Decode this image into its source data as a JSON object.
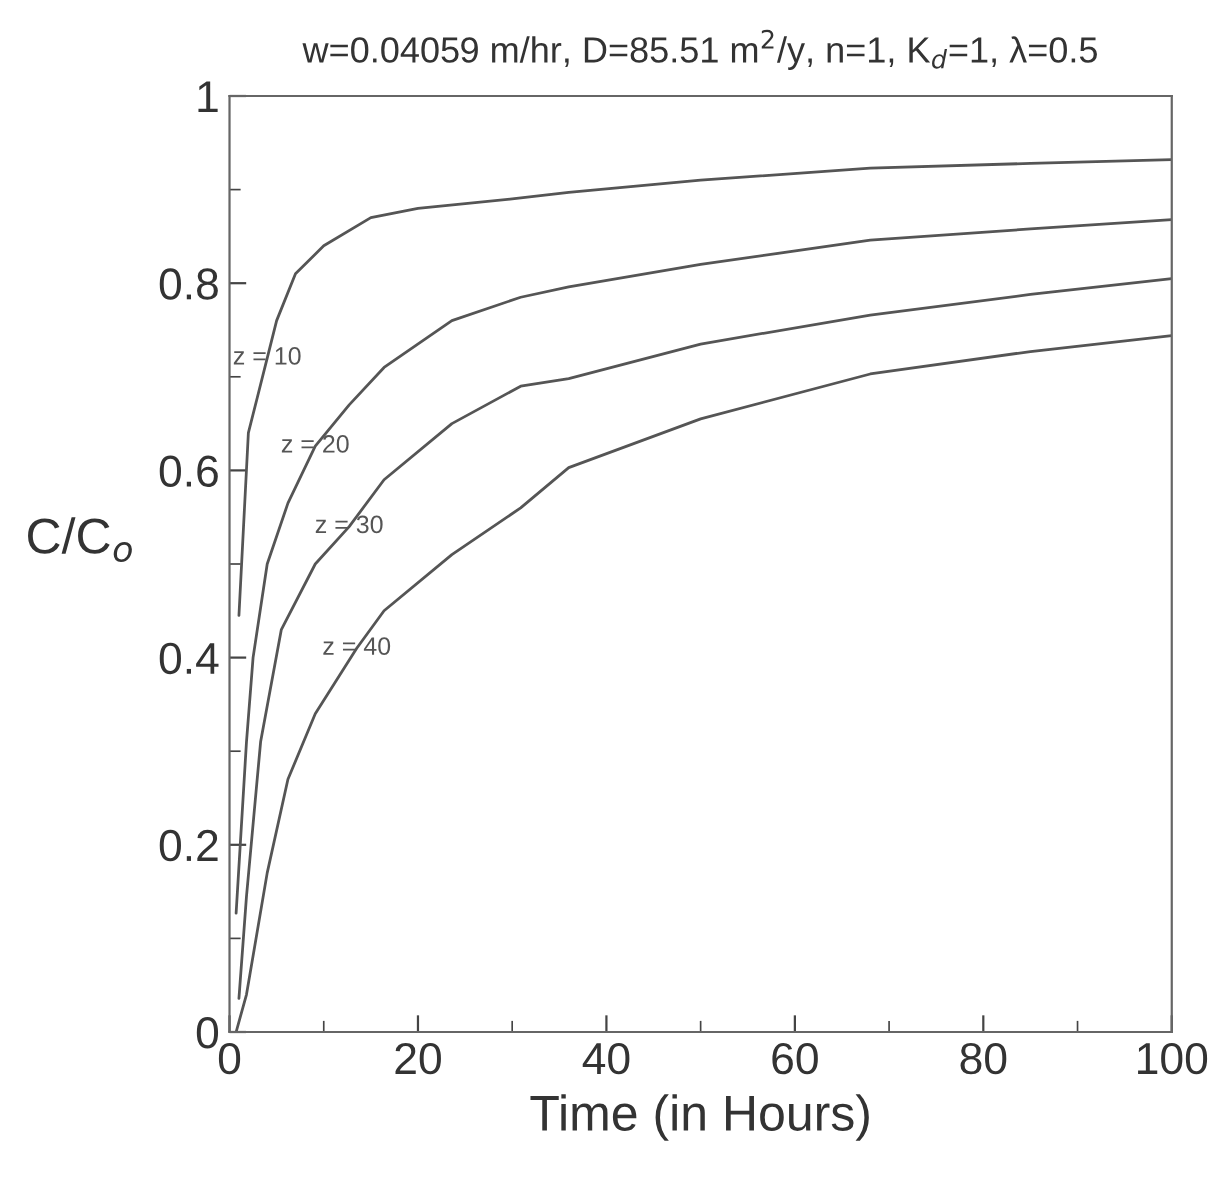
{
  "chart_data": {
    "type": "line",
    "title": "w=0.04059 m/hr, D=85.51 m$^{2}$/y, n=1, K$_{d}$=1, λ=0.5",
    "xlabel": "Time (in Hours)",
    "ylabel": "C/C$_{o}$",
    "xlim": [
      0,
      100
    ],
    "ylim": [
      0,
      1
    ],
    "xticks": [
      0,
      20,
      40,
      60,
      80,
      100
    ],
    "yticks": [
      0,
      0.2,
      0.4,
      0.6,
      0.8,
      1
    ],
    "grid": false,
    "marker": "none",
    "line_style": "solid",
    "series": [
      {
        "color": "#555555",
        "x": [
          1,
          2,
          4,
          5,
          7,
          10,
          15,
          20,
          30,
          36,
          50,
          68,
          85,
          100
        ],
        "values": [
          0.445,
          0.64,
          0.72,
          0.76,
          0.81,
          0.84,
          0.87,
          0.88,
          0.89,
          0.897,
          0.91,
          0.923,
          0.928,
          0.932
        ]
      },
      {
        "color": "#555555",
        "x": [
          0.7,
          1.8,
          2.5,
          4,
          6.2,
          9.1,
          12.7,
          16.4,
          23.6,
          30.9,
          36,
          50,
          68,
          85,
          100
        ],
        "values": [
          0.127,
          0.31,
          0.4,
          0.5,
          0.565,
          0.626,
          0.67,
          0.71,
          0.76,
          0.785,
          0.796,
          0.82,
          0.846,
          0.858,
          0.868
        ]
      },
      {
        "color": "#555555",
        "x": [
          1,
          1.8,
          3.3,
          5.5,
          9.1,
          12.7,
          16.4,
          23.6,
          30.9,
          36,
          50,
          68,
          85,
          100
        ],
        "values": [
          0.036,
          0.145,
          0.31,
          0.43,
          0.5,
          0.54,
          0.59,
          0.65,
          0.69,
          0.698,
          0.735,
          0.766,
          0.788,
          0.805
        ]
      },
      {
        "color": "#555555",
        "x": [
          0.7,
          1.8,
          4,
          6.2,
          9.1,
          13.5,
          16.4,
          23.6,
          30.9,
          36,
          50,
          68,
          85,
          100
        ],
        "values": [
          0,
          0.04,
          0.17,
          0.27,
          0.34,
          0.41,
          0.45,
          0.51,
          0.56,
          0.603,
          0.655,
          0.703,
          0.727,
          0.744
        ]
      }
    ],
    "annotations": [
      {
        "text": "z = 10",
        "x": 4,
        "y": 0.72
      },
      {
        "text": "z = 20",
        "x": 9.1,
        "y": 0.626
      },
      {
        "text": "z = 30",
        "x": 12.7,
        "y": 0.54
      },
      {
        "text": "z = 40",
        "x": 13.5,
        "y": 0.41
      }
    ]
  }
}
